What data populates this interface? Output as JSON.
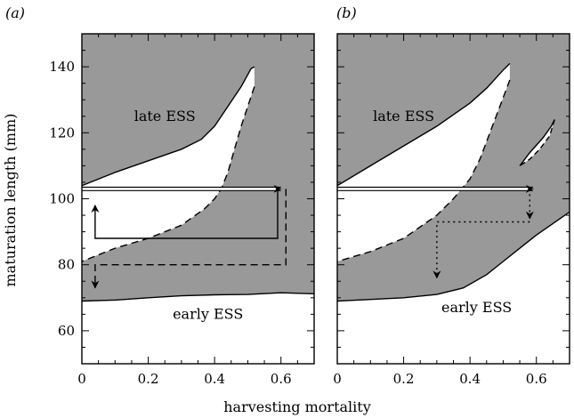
{
  "chart_data": {
    "type": "region",
    "xlabel": "harvesting mortality",
    "ylabel": "maturation length (mm)",
    "xlim": [
      0,
      0.7
    ],
    "ylim": [
      50,
      150
    ],
    "xticks": [
      0,
      0.2,
      0.4,
      0.6
    ],
    "xtick_labels": [
      "0",
      "0.2",
      "0.4",
      "0.6"
    ],
    "yticks": [
      60,
      80,
      100,
      120,
      140
    ],
    "ytick_labels": [
      "60",
      "80",
      "100",
      "120",
      "140"
    ],
    "region_fill": "#999999",
    "panels": [
      {
        "label": "(a)",
        "late_label": "late ESS",
        "early_label": "early ESS",
        "late_label_pos": [
          0.25,
          125
        ],
        "early_label_pos": [
          0.38,
          65
        ],
        "upper_boundary": [
          [
            0,
            104
          ],
          [
            0.1,
            108
          ],
          [
            0.2,
            111.5
          ],
          [
            0.3,
            115
          ],
          [
            0.36,
            118
          ],
          [
            0.4,
            122
          ],
          [
            0.44,
            128
          ],
          [
            0.48,
            134
          ],
          [
            0.51,
            139.5
          ],
          [
            0.52,
            140
          ]
        ],
        "lower_boundary_dashed": [
          [
            0.52,
            134
          ],
          [
            0.5,
            128
          ],
          [
            0.48,
            122
          ],
          [
            0.46,
            115
          ],
          [
            0.44,
            108
          ],
          [
            0.42,
            103
          ],
          [
            0.4,
            100
          ],
          [
            0.37,
            97
          ],
          [
            0.3,
            92
          ],
          [
            0.2,
            88
          ],
          [
            0.1,
            85
          ],
          [
            0,
            81
          ]
        ],
        "early_boundary": [
          [
            0,
            69
          ],
          [
            0.1,
            69.3
          ],
          [
            0.2,
            70
          ],
          [
            0.3,
            70.6
          ],
          [
            0.4,
            70.9
          ],
          [
            0.5,
            71
          ],
          [
            0.6,
            71.5
          ],
          [
            0.7,
            71.2
          ]
        ],
        "islands": [],
        "paths": [
          {
            "style": "double",
            "points": [
              [
                0,
                103
              ],
              [
                0.6,
                103
              ]
            ],
            "arrow": true
          },
          {
            "style": "solid",
            "points": [
              [
                0.59,
                103
              ],
              [
                0.59,
                88
              ],
              [
                0.04,
                88
              ],
              [
                0.04,
                98
              ]
            ],
            "arrow": true
          },
          {
            "style": "dashed",
            "points": [
              [
                0.615,
                103
              ],
              [
                0.615,
                80
              ],
              [
                0.04,
                80
              ],
              [
                0.04,
                73
              ]
            ],
            "arrow": true
          }
        ]
      },
      {
        "label": "(b)",
        "late_label": "late ESS",
        "early_label": "early ESS",
        "late_label_pos": [
          0.2,
          125
        ],
        "early_label_pos": [
          0.42,
          67
        ],
        "upper_boundary": [
          [
            0,
            104
          ],
          [
            0.1,
            110
          ],
          [
            0.2,
            116
          ],
          [
            0.3,
            122
          ],
          [
            0.4,
            129
          ],
          [
            0.45,
            133.5
          ],
          [
            0.5,
            139
          ],
          [
            0.52,
            141
          ]
        ],
        "lower_boundary_dashed": [
          [
            0.52,
            136
          ],
          [
            0.49,
            128
          ],
          [
            0.46,
            120
          ],
          [
            0.43,
            112
          ],
          [
            0.4,
            106
          ],
          [
            0.35,
            100
          ],
          [
            0.3,
            95
          ],
          [
            0.2,
            88
          ],
          [
            0.1,
            84
          ],
          [
            0,
            81
          ]
        ],
        "early_boundary": [
          [
            0,
            69
          ],
          [
            0.1,
            69.5
          ],
          [
            0.2,
            70
          ],
          [
            0.3,
            71
          ],
          [
            0.38,
            73
          ],
          [
            0.45,
            77
          ],
          [
            0.5,
            81
          ],
          [
            0.55,
            85
          ],
          [
            0.6,
            89
          ],
          [
            0.65,
            92.5
          ],
          [
            0.7,
            96
          ]
        ],
        "islands": [
          {
            "upper": [
              [
                0.55,
                110
              ],
              [
                0.58,
                114
              ],
              [
                0.62,
                118.5
              ],
              [
                0.645,
                122
              ],
              [
                0.655,
                124
              ]
            ],
            "lower_dashed": [
              [
                0.655,
                124
              ],
              [
                0.64,
                119
              ],
              [
                0.61,
                115
              ],
              [
                0.58,
                112
              ],
              [
                0.55,
                110
              ]
            ]
          }
        ],
        "paths": [
          {
            "style": "double",
            "points": [
              [
                0,
                103
              ],
              [
                0.59,
                103
              ]
            ],
            "arrow": true
          },
          {
            "style": "dotted",
            "points": [
              [
                0.58,
                103
              ],
              [
                0.58,
                94
              ]
            ],
            "arrow": true
          },
          {
            "style": "dotted",
            "points": [
              [
                0.58,
                93
              ],
              [
                0.3,
                93
              ],
              [
                0.3,
                76
              ]
            ],
            "arrow": true
          }
        ]
      }
    ]
  }
}
